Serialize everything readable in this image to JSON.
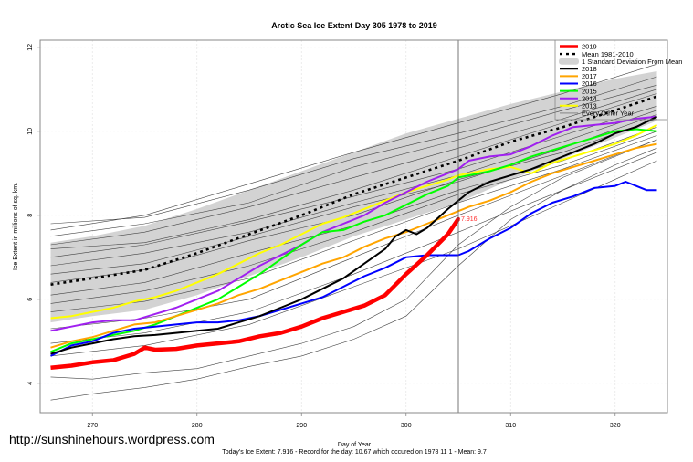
{
  "chart_data": {
    "type": "line",
    "title": "Arctic Sea Ice Extent Day 305 1978 to 2019",
    "xlabel": "Day of Year",
    "ylabel": "Ice Extent in millions of sq. km.",
    "subtitle": "Today's Ice Extent: 7.916  - Record for the day: 10.67 which occured on 1978 11 1  - Mean: 9.7",
    "xlim": [
      265,
      325
    ],
    "ylim": [
      3.3,
      12.17
    ],
    "xticks": [
      270,
      280,
      290,
      300,
      310,
      320
    ],
    "yticks": [
      4,
      6,
      8,
      10,
      12
    ],
    "grid": true,
    "current_day": 305,
    "current_value_label": "7.916",
    "current_value": 7.916,
    "legend_position": "top-right",
    "legend": [
      {
        "label": "2019",
        "color": "#ff0000",
        "style": "thick"
      },
      {
        "label": "Mean 1981-2010",
        "color": "#000000",
        "style": "dotted"
      },
      {
        "label": "1 Standard Deviation From Mean",
        "color": "#d3d3d3",
        "style": "band"
      },
      {
        "label": "2018",
        "color": "#000000",
        "style": "solid"
      },
      {
        "label": "2017",
        "color": "#ffa500",
        "style": "solid"
      },
      {
        "label": "2016",
        "color": "#0000ff",
        "style": "solid"
      },
      {
        "label": "2015",
        "color": "#00ff00",
        "style": "solid"
      },
      {
        "label": "2014",
        "color": "#a020f0",
        "style": "solid"
      },
      {
        "label": "2013",
        "color": "#ffff00",
        "style": "solid"
      },
      {
        "label": "Every Other Year",
        "color": "#555555",
        "style": "thin"
      }
    ],
    "sd_band": {
      "x": [
        266,
        270,
        275,
        280,
        285,
        290,
        295,
        300,
        305,
        310,
        315,
        320,
        324
      ],
      "upper": [
        7.35,
        7.5,
        7.75,
        8.15,
        8.6,
        9.05,
        9.5,
        9.95,
        10.3,
        10.65,
        10.95,
        11.25,
        11.43
      ],
      "lower": [
        5.45,
        5.6,
        5.75,
        6.1,
        6.55,
        7.0,
        7.5,
        7.9,
        8.3,
        8.85,
        9.35,
        9.85,
        10.25
      ]
    },
    "mean": {
      "x": [
        266,
        270,
        275,
        280,
        285,
        290,
        295,
        300,
        305,
        310,
        315,
        320,
        324
      ],
      "y": [
        6.35,
        6.5,
        6.7,
        7.1,
        7.55,
        8.0,
        8.5,
        8.9,
        9.3,
        9.75,
        10.1,
        10.5,
        10.83
      ]
    },
    "other_years": [
      {
        "x": [
          266,
          275,
          285,
          295,
          305,
          315,
          324
        ],
        "y": [
          7.8,
          7.95,
          8.6,
          9.35,
          9.95,
          10.6,
          11.3
        ]
      },
      {
        "x": [
          266,
          275,
          285,
          295,
          305,
          315,
          324
        ],
        "y": [
          7.65,
          8.0,
          8.75,
          9.5,
          10.2,
          10.9,
          11.6
        ]
      },
      {
        "x": [
          266,
          275,
          285,
          295,
          305,
          315,
          324
        ],
        "y": [
          7.5,
          7.8,
          8.3,
          9.15,
          9.8,
          10.5,
          11.1
        ]
      },
      {
        "x": [
          266,
          275,
          285,
          295,
          305,
          315,
          324
        ],
        "y": [
          7.3,
          7.6,
          8.2,
          8.9,
          9.6,
          10.3,
          11.0
        ]
      },
      {
        "x": [
          266,
          275,
          285,
          295,
          305,
          315,
          324
        ],
        "y": [
          7.2,
          7.35,
          7.9,
          8.6,
          9.4,
          10.2,
          10.9
        ]
      },
      {
        "x": [
          266,
          275,
          285,
          295,
          305,
          315,
          324
        ],
        "y": [
          7.0,
          7.3,
          7.85,
          8.45,
          9.1,
          9.9,
          10.6
        ]
      },
      {
        "x": [
          266,
          275,
          285,
          295,
          305,
          315,
          324
        ],
        "y": [
          6.8,
          7.1,
          7.6,
          8.3,
          8.95,
          9.75,
          10.5
        ]
      },
      {
        "x": [
          266,
          275,
          285,
          295,
          305,
          315,
          324
        ],
        "y": [
          6.6,
          6.85,
          7.5,
          8.2,
          8.8,
          9.6,
          10.4
        ]
      },
      {
        "x": [
          266,
          275,
          285,
          295,
          305,
          315,
          324
        ],
        "y": [
          6.4,
          6.7,
          7.4,
          8.0,
          8.85,
          9.5,
          10.3
        ]
      },
      {
        "x": [
          266,
          275,
          285,
          295,
          305,
          315,
          324
        ],
        "y": [
          6.1,
          6.4,
          7.1,
          7.75,
          8.6,
          9.3,
          10.1
        ]
      },
      {
        "x": [
          266,
          275,
          285,
          295,
          305,
          315,
          324
        ],
        "y": [
          5.9,
          6.2,
          6.8,
          7.6,
          8.5,
          9.2,
          10.0
        ]
      },
      {
        "x": [
          266,
          275,
          285,
          295,
          305,
          315,
          324
        ],
        "y": [
          5.7,
          5.95,
          6.5,
          7.4,
          8.3,
          9.1,
          9.9
        ]
      },
      {
        "x": [
          266,
          275,
          285,
          295,
          305,
          315,
          324
        ],
        "y": [
          5.3,
          5.55,
          6.0,
          7.0,
          8.0,
          8.95,
          9.8
        ]
      },
      {
        "x": [
          266,
          275,
          285,
          295,
          305,
          315,
          324
        ],
        "y": [
          4.95,
          5.2,
          5.7,
          6.6,
          7.6,
          8.6,
          9.5
        ]
      },
      {
        "x": [
          266,
          275,
          285,
          295,
          305,
          315,
          324
        ],
        "y": [
          4.65,
          4.9,
          5.4,
          6.3,
          7.2,
          8.3,
          9.3
        ]
      },
      {
        "x": [
          266,
          270,
          275,
          280,
          285,
          290,
          295,
          300,
          305,
          310,
          315,
          320,
          324
        ],
        "y": [
          4.15,
          4.1,
          4.25,
          4.35,
          4.65,
          4.95,
          5.35,
          6.0,
          7.3,
          8.2,
          8.9,
          9.4,
          9.8
        ]
      },
      {
        "x": [
          266,
          270,
          275,
          280,
          285,
          290,
          295,
          300,
          305,
          310,
          315,
          320,
          324
        ],
        "y": [
          3.6,
          3.75,
          3.9,
          4.1,
          4.4,
          4.65,
          5.05,
          5.6,
          6.8,
          7.9,
          8.6,
          9.2,
          9.6
        ]
      }
    ],
    "series": [
      {
        "name": "2013",
        "color": "#ffff00",
        "x": [
          266,
          268,
          270,
          272,
          274,
          276,
          278,
          280,
          282,
          284,
          286,
          288,
          290,
          292,
          294,
          296,
          298,
          300,
          302,
          304,
          305,
          306,
          308,
          310,
          312,
          314,
          316,
          318,
          320,
          322,
          324
        ],
        "y": [
          5.55,
          5.6,
          5.7,
          5.8,
          5.95,
          6.05,
          6.2,
          6.4,
          6.6,
          6.85,
          7.1,
          7.3,
          7.55,
          7.8,
          7.95,
          8.15,
          8.35,
          8.55,
          8.7,
          8.85,
          8.95,
          9.0,
          9.1,
          9.15,
          9.0,
          9.25,
          9.4,
          9.55,
          9.7,
          9.9,
          10.15
        ]
      },
      {
        "name": "2014",
        "color": "#a020f0",
        "x": [
          266,
          268,
          270,
          272,
          274,
          276,
          278,
          280,
          282,
          284,
          286,
          288,
          290,
          292,
          294,
          296,
          298,
          300,
          302,
          304,
          305,
          306,
          308,
          310,
          312,
          314,
          316,
          318,
          320,
          322,
          324
        ],
        "y": [
          5.25,
          5.35,
          5.45,
          5.5,
          5.5,
          5.65,
          5.8,
          6.0,
          6.2,
          6.5,
          6.8,
          7.05,
          7.3,
          7.6,
          7.8,
          8.0,
          8.3,
          8.55,
          8.8,
          9.0,
          9.1,
          9.3,
          9.4,
          9.45,
          9.65,
          9.9,
          10.1,
          10.15,
          10.2,
          10.3,
          10.35
        ]
      },
      {
        "name": "2015",
        "color": "#00ff00",
        "x": [
          266,
          268,
          270,
          272,
          274,
          276,
          278,
          280,
          282,
          284,
          286,
          288,
          290,
          292,
          294,
          296,
          298,
          300,
          302,
          304,
          305,
          306,
          308,
          310,
          312,
          314,
          316,
          318,
          320,
          322,
          324
        ],
        "y": [
          4.75,
          4.95,
          5.05,
          5.15,
          5.25,
          5.4,
          5.6,
          5.8,
          6.0,
          6.3,
          6.6,
          6.95,
          7.3,
          7.6,
          7.65,
          7.85,
          8.0,
          8.25,
          8.5,
          8.7,
          8.9,
          8.95,
          9.05,
          9.2,
          9.4,
          9.55,
          9.7,
          9.85,
          10.0,
          10.05,
          10.0
        ]
      },
      {
        "name": "2016",
        "color": "#0000ff",
        "x": [
          266,
          268,
          270,
          272,
          274,
          276,
          278,
          280,
          282,
          284,
          286,
          288,
          290,
          292,
          294,
          296,
          298,
          300,
          302,
          304,
          305,
          306,
          308,
          310,
          312,
          314,
          316,
          318,
          320,
          321,
          322,
          323,
          324
        ],
        "y": [
          4.65,
          4.9,
          5.0,
          5.2,
          5.3,
          5.35,
          5.4,
          5.45,
          5.45,
          5.5,
          5.6,
          5.75,
          5.9,
          6.05,
          6.3,
          6.55,
          6.75,
          7.0,
          7.05,
          7.05,
          7.05,
          7.15,
          7.45,
          7.7,
          8.05,
          8.3,
          8.45,
          8.65,
          8.7,
          8.8,
          8.7,
          8.6,
          8.6
        ]
      },
      {
        "name": "2017",
        "color": "#ffa500",
        "x": [
          266,
          268,
          270,
          272,
          274,
          276,
          278,
          280,
          282,
          284,
          286,
          288,
          290,
          292,
          294,
          296,
          298,
          300,
          302,
          304,
          305,
          306,
          308,
          310,
          312,
          314,
          316,
          318,
          320,
          322,
          324
        ],
        "y": [
          4.85,
          5.0,
          5.1,
          5.25,
          5.4,
          5.45,
          5.6,
          5.75,
          5.9,
          6.1,
          6.25,
          6.45,
          6.65,
          6.85,
          7.0,
          7.25,
          7.45,
          7.6,
          7.8,
          8.0,
          8.1,
          8.2,
          8.35,
          8.55,
          8.8,
          9.0,
          9.15,
          9.3,
          9.45,
          9.6,
          9.7
        ]
      },
      {
        "name": "2018",
        "color": "#000000",
        "x": [
          266,
          268,
          270,
          272,
          274,
          276,
          278,
          280,
          282,
          284,
          286,
          288,
          290,
          292,
          294,
          296,
          298,
          299,
          300,
          301,
          302,
          304,
          305,
          306,
          308,
          310,
          312,
          314,
          316,
          318,
          320,
          322,
          324
        ],
        "y": [
          4.7,
          4.85,
          4.95,
          5.05,
          5.12,
          5.15,
          5.2,
          5.25,
          5.3,
          5.45,
          5.6,
          5.8,
          6.0,
          6.25,
          6.5,
          6.85,
          7.2,
          7.5,
          7.65,
          7.55,
          7.7,
          8.15,
          8.35,
          8.55,
          8.8,
          8.95,
          9.1,
          9.3,
          9.5,
          9.7,
          9.95,
          10.1,
          10.35
        ]
      },
      {
        "name": "2019",
        "color": "#ff0000",
        "x": [
          266,
          268,
          270,
          272,
          274,
          275,
          276,
          278,
          280,
          282,
          284,
          286,
          288,
          290,
          292,
          294,
          296,
          298,
          300,
          302,
          304,
          305
        ],
        "y": [
          4.37,
          4.42,
          4.5,
          4.55,
          4.7,
          4.85,
          4.8,
          4.82,
          4.9,
          4.95,
          5.0,
          5.12,
          5.2,
          5.35,
          5.55,
          5.7,
          5.85,
          6.1,
          6.6,
          7.05,
          7.55,
          7.916
        ]
      }
    ]
  },
  "footer": {
    "watermark": "http://sunshinehours.wordpress.com"
  }
}
